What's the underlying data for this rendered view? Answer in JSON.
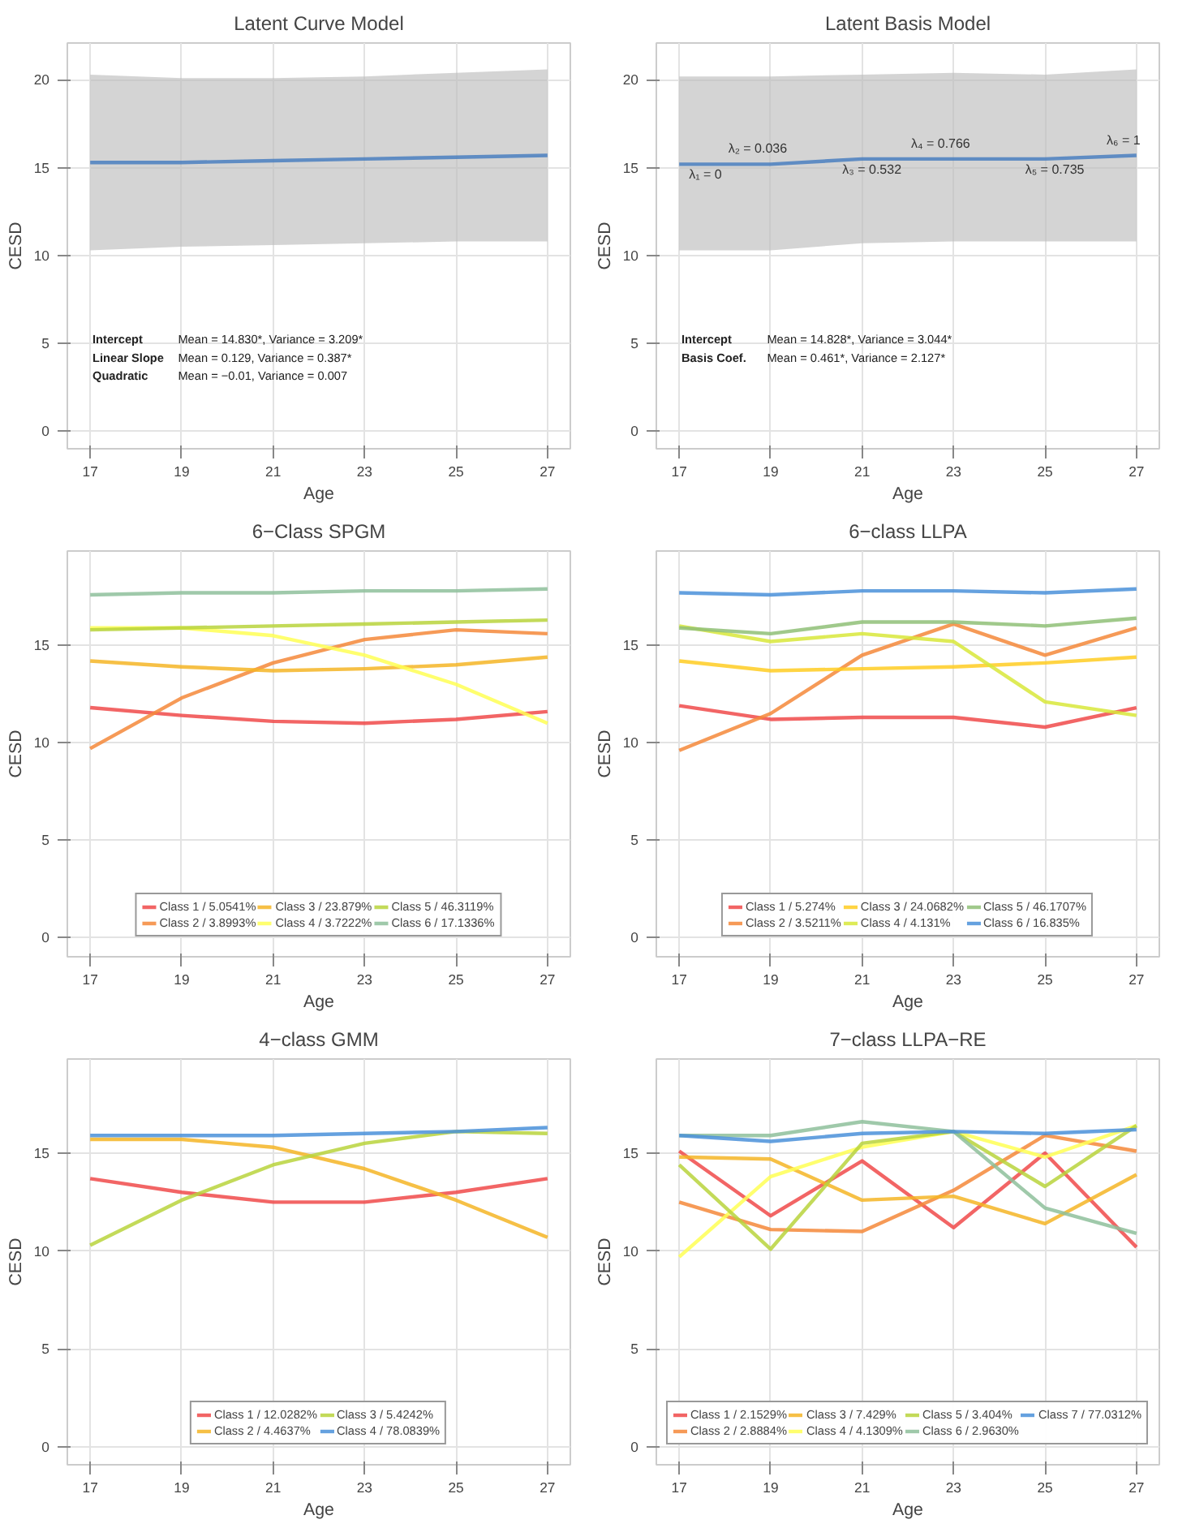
{
  "chart_data": [
    {
      "type": "line",
      "title": "Latent Curve Model",
      "xlabel": "Age",
      "ylabel": "CESD",
      "x": [
        17,
        19,
        21,
        23,
        25,
        27
      ],
      "xlim": [
        16.5,
        27.5
      ],
      "xticks": [
        17,
        19,
        21,
        23,
        25,
        27
      ],
      "ylim": [
        -1,
        22.1
      ],
      "yticks": [
        0,
        5,
        10,
        15,
        20
      ],
      "grid": true,
      "series": [
        {
          "color": "#4a7fbf",
          "values": [
            15.3,
            15.3,
            15.4,
            15.5,
            15.6,
            15.7
          ],
          "lower": [
            10.3,
            10.5,
            10.6,
            10.7,
            10.8,
            10.8
          ],
          "upper": [
            20.3,
            20.1,
            20.1,
            20.2,
            20.4,
            20.6
          ]
        }
      ],
      "annotations": [
        "Intercept",
        "Mean = 14.830*, Variance = 3.209*",
        "Linear Slope",
        "Mean = 0.129, Variance = 0.387*",
        "Quadratic",
        "Mean = −0.01, Variance = 0.007"
      ]
    },
    {
      "type": "line",
      "title": "Latent Basis Model",
      "xlabel": "Age",
      "ylabel": "CESD",
      "x": [
        17,
        19,
        21,
        23,
        25,
        27
      ],
      "xlim": [
        16.5,
        27.5
      ],
      "xticks": [
        17,
        19,
        21,
        23,
        25,
        27
      ],
      "ylim": [
        -1,
        22.1
      ],
      "yticks": [
        0,
        5,
        10,
        15,
        20
      ],
      "grid": true,
      "series": [
        {
          "color": "#4a7fbf",
          "values": [
            15.2,
            15.2,
            15.5,
            15.5,
            15.5,
            15.7
          ],
          "lower": [
            10.3,
            10.3,
            10.7,
            10.8,
            10.8,
            10.8
          ],
          "upper": [
            20.2,
            20.2,
            20.3,
            20.4,
            20.3,
            20.6
          ]
        }
      ],
      "annotations": [
        {
          "text": "λ₁ = 0",
          "x": 17,
          "y": 15.2
        },
        {
          "text": "λ₂ = 0.036",
          "x": 19,
          "y": 15.2
        },
        {
          "text": "λ₃ = 0.532",
          "x": 21,
          "y": 15.5
        },
        {
          "text": "λ₄ = 0.766",
          "x": 23,
          "y": 15.5
        },
        {
          "text": "λ₅ = 0.735",
          "x": 25,
          "y": 15.5
        },
        {
          "text": "λ₆ = 1",
          "x": 27,
          "y": 15.7
        },
        "Intercept",
        "Mean = 14.828*, Variance = 3.044*",
        "Basis Coef.",
        "Mean = 0.461*, Variance = 2.127*"
      ]
    },
    {
      "type": "line",
      "title": "6−Class SPGM",
      "xlabel": "Age",
      "ylabel": "CESD",
      "x": [
        17,
        19,
        21,
        23,
        25,
        27
      ],
      "xlim": [
        16.5,
        27.5
      ],
      "xticks": [
        17,
        19,
        21,
        23,
        25,
        27
      ],
      "ylim": [
        -1,
        19.85
      ],
      "yticks": [
        0,
        5,
        10,
        15
      ],
      "grid": true,
      "legend": "bottom",
      "series": [
        {
          "name": "Class 1 / 5.0541%",
          "color": "#f04a4a",
          "values": [
            11.8,
            11.4,
            11.1,
            11.0,
            11.2,
            11.6
          ]
        },
        {
          "name": "Class 2 / 3.8993%",
          "color": "#f5883a",
          "values": [
            9.7,
            12.3,
            14.1,
            15.3,
            15.8,
            15.6
          ]
        },
        {
          "name": "Class 3 / 23.879%",
          "color": "#f5b526",
          "values": [
            14.2,
            13.9,
            13.7,
            13.8,
            14.0,
            14.4
          ]
        },
        {
          "name": "Class 4 / 3.7222%",
          "color": "#ffff55",
          "values": [
            15.9,
            15.9,
            15.5,
            14.5,
            13.0,
            11.0
          ]
        },
        {
          "name": "Class 5 / 46.3119%",
          "color": "#b8d33c",
          "values": [
            15.8,
            15.9,
            16.0,
            16.1,
            16.2,
            16.3
          ]
        },
        {
          "name": "Class 6 / 17.1336%",
          "color": "#8ebf9b",
          "values": [
            17.6,
            17.7,
            17.7,
            17.8,
            17.8,
            17.9
          ]
        }
      ]
    },
    {
      "type": "line",
      "title": "6−class LLPA",
      "xlabel": "Age",
      "ylabel": "CESD",
      "x": [
        17,
        19,
        21,
        23,
        25,
        27
      ],
      "xlim": [
        16.5,
        27.5
      ],
      "xticks": [
        17,
        19,
        21,
        23,
        25,
        27
      ],
      "ylim": [
        -1,
        19.85
      ],
      "yticks": [
        0,
        5,
        10,
        15
      ],
      "grid": true,
      "legend": "bottom",
      "series": [
        {
          "name": "Class 1 / 5.274%",
          "color": "#f04a4a",
          "values": [
            11.9,
            11.2,
            11.3,
            11.3,
            10.8,
            11.8
          ]
        },
        {
          "name": "Class 2 / 3.5211%",
          "color": "#f5883a",
          "values": [
            9.6,
            11.5,
            14.5,
            16.1,
            14.5,
            15.9
          ]
        },
        {
          "name": "Class 3 / 24.0682%",
          "color": "#ffcc22",
          "values": [
            14.2,
            13.7,
            13.8,
            13.9,
            14.1,
            14.4
          ]
        },
        {
          "name": "Class 4 / 4.131%",
          "color": "#d8e83a",
          "values": [
            16.0,
            15.2,
            15.6,
            15.2,
            12.1,
            11.4
          ]
        },
        {
          "name": "Class 5 / 46.1707%",
          "color": "#8fbf77",
          "values": [
            15.9,
            15.6,
            16.2,
            16.2,
            16.0,
            16.4
          ]
        },
        {
          "name": "Class 6 / 16.835%",
          "color": "#4a90d9",
          "values": [
            17.7,
            17.6,
            17.8,
            17.8,
            17.7,
            17.9
          ]
        }
      ]
    },
    {
      "type": "line",
      "title": "4−class GMM",
      "xlabel": "Age",
      "ylabel": "CESD",
      "x": [
        17,
        19,
        21,
        23,
        25,
        27
      ],
      "xlim": [
        16.5,
        27.5
      ],
      "xticks": [
        17,
        19,
        21,
        23,
        25,
        27
      ],
      "ylim": [
        -0.9,
        19.8
      ],
      "yticks": [
        0,
        5,
        10,
        15
      ],
      "grid": true,
      "legend": "bottom",
      "series": [
        {
          "name": "Class 1 / 12.0282%",
          "color": "#f04a4a",
          "values": [
            13.7,
            13.0,
            12.5,
            12.5,
            13.0,
            13.7
          ]
        },
        {
          "name": "Class 2 / 4.4637%",
          "color": "#f5b526",
          "values": [
            15.7,
            15.7,
            15.3,
            14.2,
            12.6,
            10.7
          ]
        },
        {
          "name": "Class 3 / 5.4242%",
          "color": "#b8d33c",
          "values": [
            10.3,
            12.6,
            14.4,
            15.5,
            16.1,
            16.0
          ]
        },
        {
          "name": "Class 4 / 78.0839%",
          "color": "#4a90d9",
          "values": [
            15.9,
            15.9,
            15.9,
            16.0,
            16.1,
            16.3
          ]
        }
      ]
    },
    {
      "type": "line",
      "title": "7−class LLPA−RE",
      "xlabel": "Age",
      "ylabel": "CESD",
      "x": [
        17,
        19,
        21,
        23,
        25,
        27
      ],
      "xlim": [
        16.5,
        27.5
      ],
      "xticks": [
        17,
        19,
        21,
        23,
        25,
        27
      ],
      "ylim": [
        -0.9,
        19.8
      ],
      "yticks": [
        0,
        5,
        10,
        15
      ],
      "grid": true,
      "legend": "bottom",
      "series": [
        {
          "name": "Class 1 / 2.1529%",
          "color": "#f04a4a",
          "values": [
            15.1,
            11.8,
            14.6,
            11.2,
            15.0,
            10.2
          ]
        },
        {
          "name": "Class 2 / 2.8884%",
          "color": "#f5883a",
          "values": [
            12.5,
            11.1,
            11.0,
            13.1,
            15.9,
            15.1
          ]
        },
        {
          "name": "Class 3 / 7.429%",
          "color": "#f5b526",
          "values": [
            14.8,
            14.7,
            12.6,
            12.8,
            11.4,
            13.9
          ]
        },
        {
          "name": "Class 4 / 4.1309%",
          "color": "#ffff55",
          "values": [
            9.7,
            13.8,
            15.3,
            16.1,
            14.8,
            16.4
          ]
        },
        {
          "name": "Class 5 / 3.404%",
          "color": "#b8d33c",
          "values": [
            14.4,
            10.1,
            15.5,
            16.1,
            13.3,
            16.4
          ]
        },
        {
          "name": "Class 6 / 2.9630%",
          "color": "#8ebf9b",
          "values": [
            15.9,
            15.9,
            16.6,
            16.1,
            12.2,
            10.9
          ]
        },
        {
          "name": "Class 7 / 77.0312%",
          "color": "#4a90d9",
          "values": [
            15.9,
            15.6,
            16.0,
            16.1,
            16.0,
            16.2
          ]
        }
      ]
    }
  ]
}
